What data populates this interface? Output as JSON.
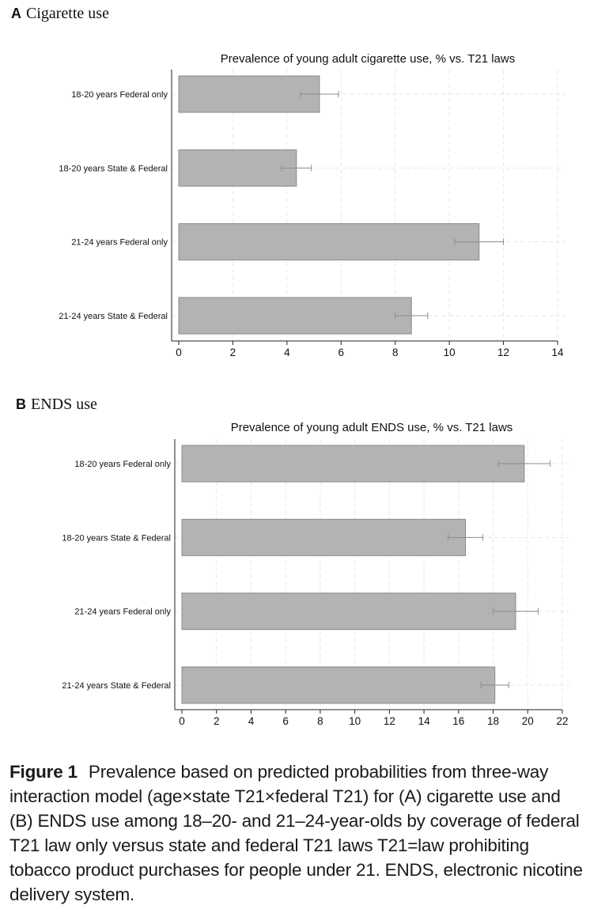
{
  "panels": {
    "a": {
      "letter": "A",
      "title": "Cigarette use"
    },
    "b": {
      "letter": "B",
      "title": "ENDS use"
    }
  },
  "chart_data": [
    {
      "type": "bar",
      "orientation": "horizontal",
      "title": "Prevalence of young adult cigarette use, % vs. T21 laws",
      "categories": [
        "18-20 years Federal only",
        "18-20 years State & Federal",
        "21-24 years Federal only",
        "21-24 years State & Federal"
      ],
      "values": [
        5.2,
        4.35,
        11.1,
        8.6
      ],
      "ci_low": [
        4.5,
        3.8,
        10.2,
        8.0
      ],
      "ci_high": [
        5.9,
        4.9,
        12.0,
        9.2
      ],
      "xlim": [
        0,
        14
      ],
      "xticks": [
        0,
        2,
        4,
        6,
        8,
        10,
        12,
        14
      ],
      "grid": true,
      "bar_color": "#b3b3b3"
    },
    {
      "type": "bar",
      "orientation": "horizontal",
      "title": "Prevalence of young adult ENDS use, % vs. T21 laws",
      "categories": [
        "18-20 years Federal only",
        "18-20 years State & Federal",
        "21-24 years Federal only",
        "21-24 years State & Federal"
      ],
      "values": [
        19.8,
        16.4,
        19.3,
        18.1
      ],
      "ci_low": [
        18.3,
        15.4,
        18.0,
        17.3
      ],
      "ci_high": [
        21.3,
        17.4,
        20.6,
        18.9
      ],
      "xlim": [
        0,
        22
      ],
      "xticks": [
        0,
        2,
        4,
        6,
        8,
        10,
        12,
        14,
        16,
        18,
        20,
        22
      ],
      "grid": true,
      "bar_color": "#b3b3b3"
    }
  ],
  "caption": {
    "label": "Figure 1",
    "text": "Prevalence based on predicted probabilities from three-way interaction model (age×state T21×federal T21) for (A) cigarette use and (B) ENDS use among 18–20- and 21–24-year-olds by coverage of federal T21 law only versus state and federal T21 laws T21=law prohibiting tobacco product purchases for people under 21. ENDS, electronic nicotine delivery system."
  }
}
